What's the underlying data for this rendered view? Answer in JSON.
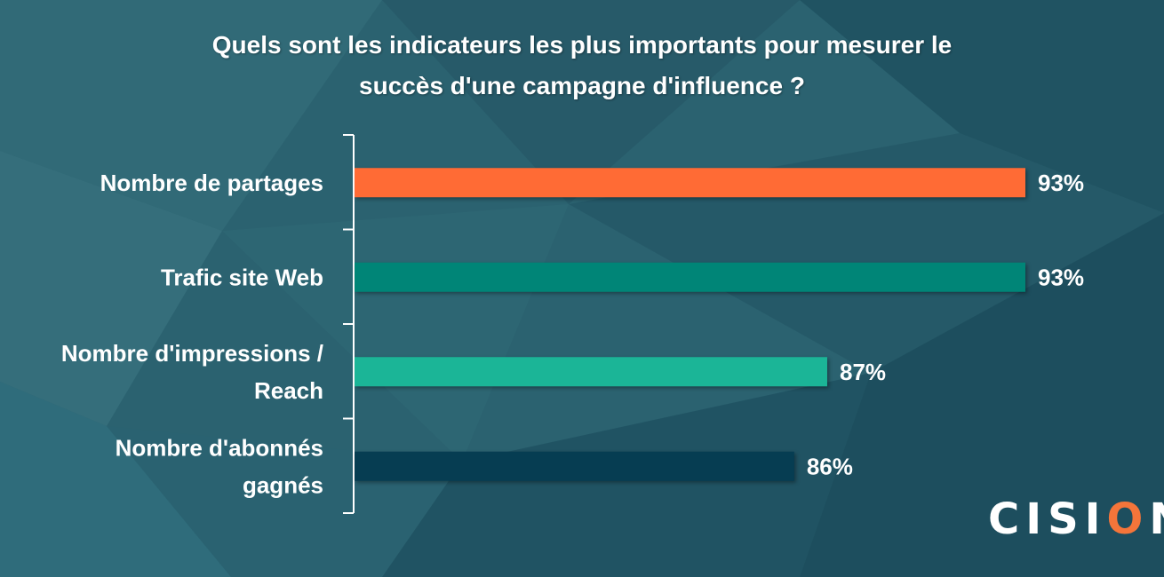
{
  "chart_data": {
    "type": "bar",
    "orientation": "horizontal",
    "title_lines": [
      "Quels sont les indicateurs les plus importants pour mesurer le",
      "succès d'une campagne d'influence ?"
    ],
    "categories": [
      [
        "Nombre de partages"
      ],
      [
        "Trafic site Web"
      ],
      [
        "Nombre d'impressions /",
        "Reach"
      ],
      [
        "Nombre d'abonnés",
        "gagnés"
      ]
    ],
    "values": [
      93,
      93,
      87,
      86
    ],
    "value_labels": [
      "93%",
      "93%",
      "87%",
      "86%"
    ],
    "bar_colors": [
      "#ff6b35",
      "#008577",
      "#1bb597",
      "#063d52"
    ],
    "xlim": [
      80,
      93
    ],
    "grid": false,
    "legend": "none"
  },
  "logo": {
    "text_before": "CISI",
    "text_o": "O",
    "text_after": "N",
    "mark": "®"
  }
}
